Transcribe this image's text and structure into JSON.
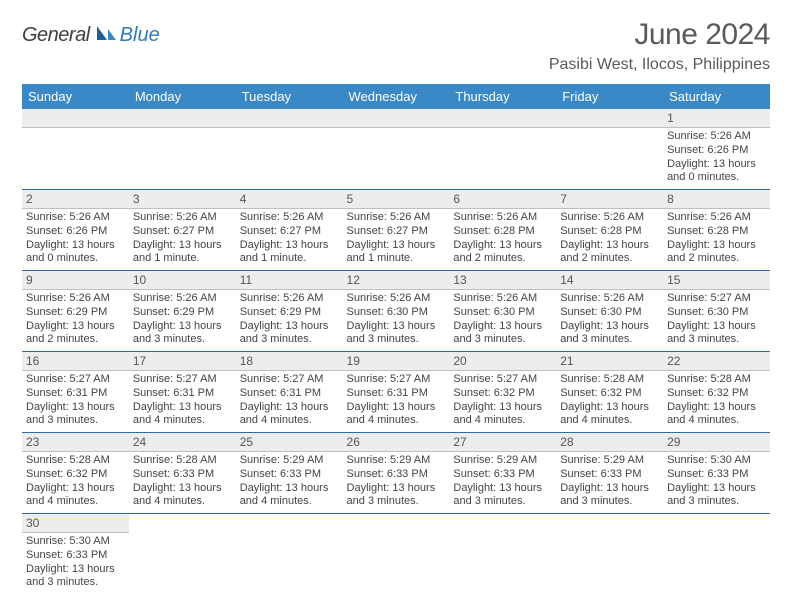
{
  "brand": {
    "part1": "General",
    "part2": "Blue"
  },
  "title": "June 2024",
  "location": "Pasibi West, Ilocos, Philippines",
  "header_bg": "#3b88c6",
  "row_divider": "#2f6aa8",
  "daynum_bg": "#eceeee",
  "days": [
    "Sunday",
    "Monday",
    "Tuesday",
    "Wednesday",
    "Thursday",
    "Friday",
    "Saturday"
  ],
  "weeks": [
    [
      null,
      null,
      null,
      null,
      null,
      null,
      {
        "n": "1",
        "sr": "Sunrise: 5:26 AM",
        "ss": "Sunset: 6:26 PM",
        "d1": "Daylight: 13 hours",
        "d2": "and 0 minutes."
      }
    ],
    [
      {
        "n": "2",
        "sr": "Sunrise: 5:26 AM",
        "ss": "Sunset: 6:26 PM",
        "d1": "Daylight: 13 hours",
        "d2": "and 0 minutes."
      },
      {
        "n": "3",
        "sr": "Sunrise: 5:26 AM",
        "ss": "Sunset: 6:27 PM",
        "d1": "Daylight: 13 hours",
        "d2": "and 1 minute."
      },
      {
        "n": "4",
        "sr": "Sunrise: 5:26 AM",
        "ss": "Sunset: 6:27 PM",
        "d1": "Daylight: 13 hours",
        "d2": "and 1 minute."
      },
      {
        "n": "5",
        "sr": "Sunrise: 5:26 AM",
        "ss": "Sunset: 6:27 PM",
        "d1": "Daylight: 13 hours",
        "d2": "and 1 minute."
      },
      {
        "n": "6",
        "sr": "Sunrise: 5:26 AM",
        "ss": "Sunset: 6:28 PM",
        "d1": "Daylight: 13 hours",
        "d2": "and 2 minutes."
      },
      {
        "n": "7",
        "sr": "Sunrise: 5:26 AM",
        "ss": "Sunset: 6:28 PM",
        "d1": "Daylight: 13 hours",
        "d2": "and 2 minutes."
      },
      {
        "n": "8",
        "sr": "Sunrise: 5:26 AM",
        "ss": "Sunset: 6:28 PM",
        "d1": "Daylight: 13 hours",
        "d2": "and 2 minutes."
      }
    ],
    [
      {
        "n": "9",
        "sr": "Sunrise: 5:26 AM",
        "ss": "Sunset: 6:29 PM",
        "d1": "Daylight: 13 hours",
        "d2": "and 2 minutes."
      },
      {
        "n": "10",
        "sr": "Sunrise: 5:26 AM",
        "ss": "Sunset: 6:29 PM",
        "d1": "Daylight: 13 hours",
        "d2": "and 3 minutes."
      },
      {
        "n": "11",
        "sr": "Sunrise: 5:26 AM",
        "ss": "Sunset: 6:29 PM",
        "d1": "Daylight: 13 hours",
        "d2": "and 3 minutes."
      },
      {
        "n": "12",
        "sr": "Sunrise: 5:26 AM",
        "ss": "Sunset: 6:30 PM",
        "d1": "Daylight: 13 hours",
        "d2": "and 3 minutes."
      },
      {
        "n": "13",
        "sr": "Sunrise: 5:26 AM",
        "ss": "Sunset: 6:30 PM",
        "d1": "Daylight: 13 hours",
        "d2": "and 3 minutes."
      },
      {
        "n": "14",
        "sr": "Sunrise: 5:26 AM",
        "ss": "Sunset: 6:30 PM",
        "d1": "Daylight: 13 hours",
        "d2": "and 3 minutes."
      },
      {
        "n": "15",
        "sr": "Sunrise: 5:27 AM",
        "ss": "Sunset: 6:30 PM",
        "d1": "Daylight: 13 hours",
        "d2": "and 3 minutes."
      }
    ],
    [
      {
        "n": "16",
        "sr": "Sunrise: 5:27 AM",
        "ss": "Sunset: 6:31 PM",
        "d1": "Daylight: 13 hours",
        "d2": "and 3 minutes."
      },
      {
        "n": "17",
        "sr": "Sunrise: 5:27 AM",
        "ss": "Sunset: 6:31 PM",
        "d1": "Daylight: 13 hours",
        "d2": "and 4 minutes."
      },
      {
        "n": "18",
        "sr": "Sunrise: 5:27 AM",
        "ss": "Sunset: 6:31 PM",
        "d1": "Daylight: 13 hours",
        "d2": "and 4 minutes."
      },
      {
        "n": "19",
        "sr": "Sunrise: 5:27 AM",
        "ss": "Sunset: 6:31 PM",
        "d1": "Daylight: 13 hours",
        "d2": "and 4 minutes."
      },
      {
        "n": "20",
        "sr": "Sunrise: 5:27 AM",
        "ss": "Sunset: 6:32 PM",
        "d1": "Daylight: 13 hours",
        "d2": "and 4 minutes."
      },
      {
        "n": "21",
        "sr": "Sunrise: 5:28 AM",
        "ss": "Sunset: 6:32 PM",
        "d1": "Daylight: 13 hours",
        "d2": "and 4 minutes."
      },
      {
        "n": "22",
        "sr": "Sunrise: 5:28 AM",
        "ss": "Sunset: 6:32 PM",
        "d1": "Daylight: 13 hours",
        "d2": "and 4 minutes."
      }
    ],
    [
      {
        "n": "23",
        "sr": "Sunrise: 5:28 AM",
        "ss": "Sunset: 6:32 PM",
        "d1": "Daylight: 13 hours",
        "d2": "and 4 minutes."
      },
      {
        "n": "24",
        "sr": "Sunrise: 5:28 AM",
        "ss": "Sunset: 6:33 PM",
        "d1": "Daylight: 13 hours",
        "d2": "and 4 minutes."
      },
      {
        "n": "25",
        "sr": "Sunrise: 5:29 AM",
        "ss": "Sunset: 6:33 PM",
        "d1": "Daylight: 13 hours",
        "d2": "and 4 minutes."
      },
      {
        "n": "26",
        "sr": "Sunrise: 5:29 AM",
        "ss": "Sunset: 6:33 PM",
        "d1": "Daylight: 13 hours",
        "d2": "and 3 minutes."
      },
      {
        "n": "27",
        "sr": "Sunrise: 5:29 AM",
        "ss": "Sunset: 6:33 PM",
        "d1": "Daylight: 13 hours",
        "d2": "and 3 minutes."
      },
      {
        "n": "28",
        "sr": "Sunrise: 5:29 AM",
        "ss": "Sunset: 6:33 PM",
        "d1": "Daylight: 13 hours",
        "d2": "and 3 minutes."
      },
      {
        "n": "29",
        "sr": "Sunrise: 5:30 AM",
        "ss": "Sunset: 6:33 PM",
        "d1": "Daylight: 13 hours",
        "d2": "and 3 minutes."
      }
    ],
    [
      {
        "n": "30",
        "sr": "Sunrise: 5:30 AM",
        "ss": "Sunset: 6:33 PM",
        "d1": "Daylight: 13 hours",
        "d2": "and 3 minutes."
      },
      null,
      null,
      null,
      null,
      null,
      null
    ]
  ]
}
